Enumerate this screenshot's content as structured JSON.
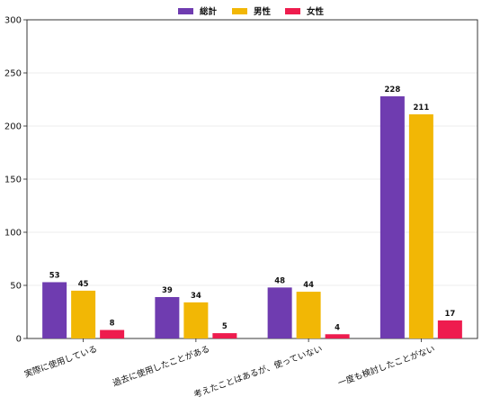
{
  "chart_data": {
    "type": "bar",
    "title": "",
    "xlabel": "",
    "ylabel": "",
    "ylim": [
      0,
      300
    ],
    "yticks": [
      0,
      50,
      100,
      150,
      200,
      250,
      300
    ],
    "grid": true,
    "legend_position": "top-center",
    "categories": [
      "実際に使用している",
      "過去に使用したことがある",
      "考えたことはあるが、使っていない",
      "一度も検討したことがない"
    ],
    "series": [
      {
        "name": "総計",
        "color": "#6f3cb0",
        "values": [
          53,
          39,
          48,
          228
        ]
      },
      {
        "name": "男性",
        "color": "#f2b705",
        "values": [
          45,
          34,
          44,
          211
        ]
      },
      {
        "name": "女性",
        "color": "#ee1c4e",
        "values": [
          8,
          5,
          4,
          17
        ]
      }
    ]
  }
}
